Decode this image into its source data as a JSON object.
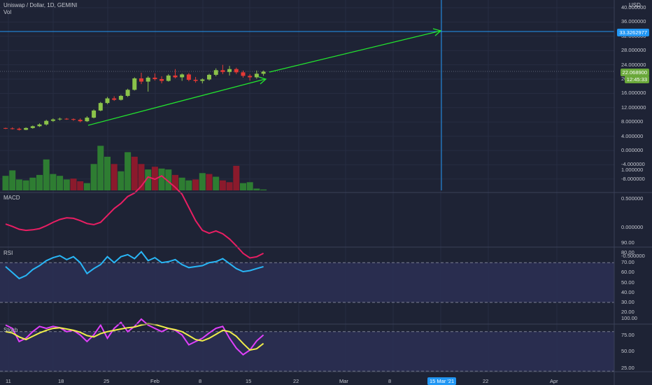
{
  "header": {
    "title": "Uniswap / Dollar, 1D, GEMINI",
    "vol_label": "Vol",
    "currency": "USD"
  },
  "panes": {
    "macd_label": "MACD",
    "rsi_label": "RSI",
    "stoch_label": "Stoch"
  },
  "price_tags": {
    "crosshair_price": "33.3262977",
    "last_price": "22.068900",
    "countdown": "12:45:33"
  },
  "price_axis": [
    "40.000000",
    "36.000000",
    "32.000000",
    "28.000000",
    "24.000000",
    "20.000000",
    "16.000000",
    "12.000000",
    "8.000000",
    "4.000000",
    "0.000000",
    "-4.000000",
    "-8.000000"
  ],
  "macd_axis": [
    "1.000000",
    "0.500000",
    "0.000000",
    "-0.500000"
  ],
  "rsi_axis": [
    "90.00",
    "80.00",
    "70.00",
    "60.00",
    "50.00",
    "40.00",
    "30.00",
    "20.00"
  ],
  "stoch_axis": [
    "100.00",
    "75.00",
    "50.00",
    "25.00"
  ],
  "time_axis": [
    "11",
    "18",
    "25",
    "Feb",
    "8",
    "15",
    "22",
    "Mar",
    "8",
    "22",
    "Apr"
  ],
  "crosshair_date": "15 Mar '21",
  "colors": {
    "background": "#1e2335",
    "up": "#8bc34a",
    "down": "#e53935",
    "vol_up": "#2e7d32",
    "vol_down": "#8b1a2c",
    "trend": "#22e52e",
    "crosshair": "#2196f3",
    "macd": "#e91e63",
    "rsi": "#29b6f6",
    "stoch_k": "#e040fb",
    "stoch_d": "#f0ee4a"
  },
  "chart_data": {
    "type": "candlestick",
    "candles": [
      [
        6.3,
        6.4,
        6.0,
        6.2
      ],
      [
        6.2,
        6.5,
        5.9,
        6.1
      ],
      [
        6.1,
        6.4,
        5.6,
        5.8
      ],
      [
        5.8,
        6.5,
        5.7,
        6.3
      ],
      [
        6.3,
        7.0,
        6.1,
        6.8
      ],
      [
        6.8,
        7.6,
        6.6,
        7.3
      ],
      [
        7.3,
        8.6,
        7.0,
        8.3
      ],
      [
        8.3,
        9.0,
        8.0,
        8.7
      ],
      [
        8.7,
        9.2,
        8.4,
        8.9
      ],
      [
        8.9,
        9.1,
        8.6,
        8.8
      ],
      [
        8.8,
        9.0,
        8.3,
        8.6
      ],
      [
        8.6,
        9.0,
        7.9,
        8.2
      ],
      [
        8.2,
        9.6,
        8.0,
        9.2
      ],
      [
        9.2,
        11.5,
        9.0,
        11.2
      ],
      [
        11.2,
        13.6,
        11.0,
        13.3
      ],
      [
        13.3,
        15.0,
        13.0,
        14.6
      ],
      [
        14.6,
        15.2,
        13.9,
        14.2
      ],
      [
        14.2,
        15.6,
        14.0,
        15.3
      ],
      [
        15.3,
        17.3,
        15.0,
        17.0
      ],
      [
        17.0,
        20.5,
        16.8,
        20.2
      ],
      [
        20.2,
        21.8,
        18.6,
        19.3
      ],
      [
        19.3,
        20.8,
        16.5,
        20.4
      ],
      [
        20.4,
        21.6,
        19.6,
        20.0
      ],
      [
        20.0,
        20.8,
        18.8,
        19.5
      ],
      [
        19.5,
        21.4,
        19.3,
        21.0
      ],
      [
        21.0,
        22.8,
        20.2,
        20.5
      ],
      [
        20.5,
        21.6,
        19.5,
        21.3
      ],
      [
        21.3,
        21.7,
        19.4,
        19.8
      ],
      [
        19.8,
        20.6,
        19.0,
        19.5
      ],
      [
        19.5,
        20.2,
        18.8,
        19.9
      ],
      [
        19.9,
        21.5,
        19.6,
        21.2
      ],
      [
        21.2,
        23.0,
        20.8,
        22.5
      ],
      [
        22.5,
        24.0,
        21.4,
        22.0
      ],
      [
        22.0,
        23.7,
        21.0,
        22.8
      ],
      [
        22.8,
        23.2,
        21.4,
        21.9
      ],
      [
        21.9,
        22.4,
        20.4,
        20.9
      ],
      [
        20.9,
        21.4,
        19.6,
        20.5
      ],
      [
        20.5,
        22.4,
        20.1,
        21.5
      ],
      [
        21.5,
        22.4,
        20.9,
        22.07
      ]
    ],
    "volume": [
      [
        1.6,
        1
      ],
      [
        2.2,
        1
      ],
      [
        1.2,
        1
      ],
      [
        1.1,
        1
      ],
      [
        1.4,
        1
      ],
      [
        1.7,
        1
      ],
      [
        3.4,
        1
      ],
      [
        1.8,
        1
      ],
      [
        1.6,
        1
      ],
      [
        1.2,
        1
      ],
      [
        1.3,
        0
      ],
      [
        1.0,
        0
      ],
      [
        0.8,
        1
      ],
      [
        2.9,
        1
      ],
      [
        4.9,
        1
      ],
      [
        3.7,
        1
      ],
      [
        2.9,
        0
      ],
      [
        2.1,
        1
      ],
      [
        4.2,
        1
      ],
      [
        3.7,
        0
      ],
      [
        2.9,
        0
      ],
      [
        2.3,
        1
      ],
      [
        2.6,
        0
      ],
      [
        2.4,
        1
      ],
      [
        2.3,
        1
      ],
      [
        1.7,
        0
      ],
      [
        1.4,
        1
      ],
      [
        1.1,
        1
      ],
      [
        1.2,
        0
      ],
      [
        1.9,
        1
      ],
      [
        1.8,
        0
      ],
      [
        1.5,
        1
      ],
      [
        1.1,
        0
      ],
      [
        0.9,
        0
      ],
      [
        2.7,
        0
      ],
      [
        0.8,
        1
      ],
      [
        0.9,
        1
      ],
      [
        0.2,
        1
      ],
      [
        0.1,
        1
      ]
    ],
    "macd": [
      0.06,
      0.02,
      -0.03,
      -0.05,
      -0.04,
      -0.02,
      0.03,
      0.09,
      0.14,
      0.17,
      0.16,
      0.12,
      0.07,
      0.05,
      0.09,
      0.21,
      0.33,
      0.42,
      0.54,
      0.6,
      0.72,
      0.88,
      0.84,
      0.9,
      0.8,
      0.7,
      0.58,
      0.35,
      0.12,
      -0.05,
      -0.1,
      -0.06,
      -0.11,
      -0.2,
      -0.32,
      -0.45,
      -0.53,
      -0.51,
      -0.45
    ],
    "rsi": [
      66,
      60,
      54,
      57,
      63,
      67,
      72,
      75,
      77,
      73,
      76,
      70,
      59,
      64,
      68,
      76,
      70,
      76,
      78,
      74,
      81,
      72,
      75,
      70,
      71,
      73,
      68,
      65,
      66,
      67,
      70,
      71,
      74,
      69,
      64,
      61,
      62,
      64,
      66
    ],
    "stoch_k": [
      90,
      85,
      65,
      70,
      80,
      88,
      85,
      88,
      86,
      80,
      82,
      75,
      65,
      75,
      90,
      70,
      85,
      94,
      80,
      88,
      99,
      90,
      85,
      80,
      85,
      82,
      75,
      60,
      65,
      70,
      78,
      85,
      88,
      70,
      55,
      45,
      52,
      66,
      75
    ],
    "stoch_d": [
      80,
      78,
      72,
      68,
      73,
      78,
      82,
      85,
      86,
      84,
      82,
      79,
      74,
      72,
      77,
      80,
      82,
      84,
      86,
      87,
      90,
      92,
      91,
      88,
      85,
      83,
      80,
      74,
      68,
      66,
      70,
      76,
      82,
      80,
      73,
      62,
      52,
      54,
      62
    ],
    "trendlines": [
      {
        "from": {
          "date": "Jan 21",
          "price": 6.7
        },
        "to": {
          "date": "Feb 18",
          "price": 19.3
        }
      },
      {
        "from": {
          "date": "Feb 18",
          "price": 19.9
        },
        "to": {
          "date": "Mar 15",
          "price": 33.3
        }
      }
    ],
    "crosshair": {
      "date": "15 Mar '21",
      "price": 33.3262977
    },
    "rsi_levels": [
      70,
      30
    ],
    "stoch_levels": [
      80,
      20
    ]
  }
}
